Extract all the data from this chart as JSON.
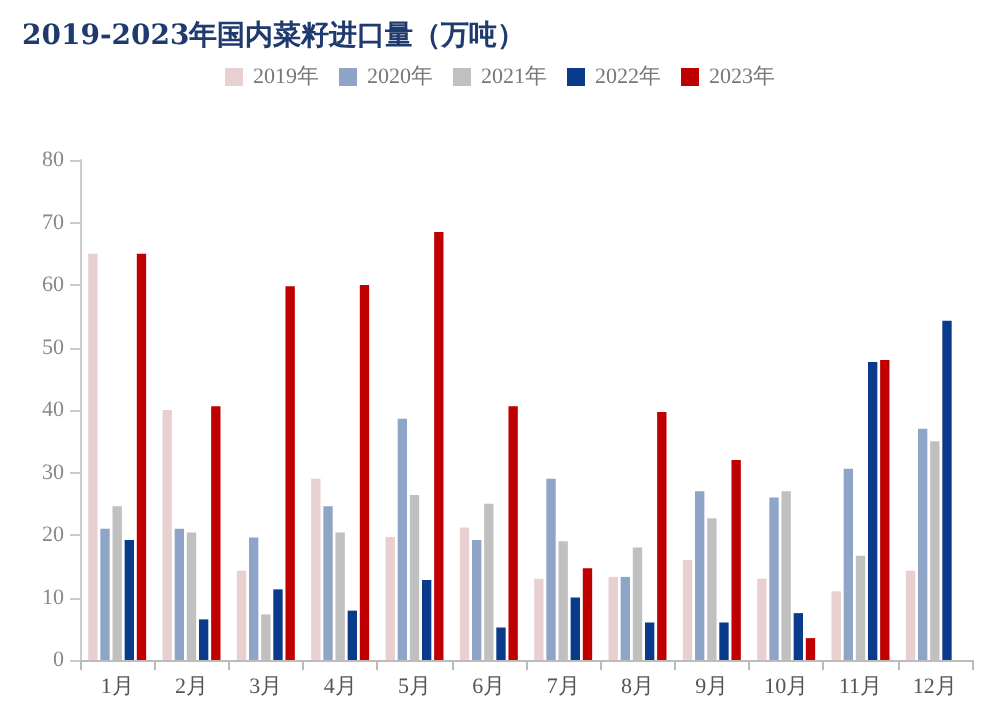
{
  "chart_data": {
    "type": "bar",
    "title": "2019-2023年国内菜籽进口量（万吨）",
    "categories": [
      "1月",
      "2月",
      "3月",
      "4月",
      "5月",
      "6月",
      "7月",
      "8月",
      "9月",
      "10月",
      "11月",
      "12月"
    ],
    "series": [
      {
        "name": "2019年",
        "color": "#e8d0d0",
        "values": [
          65,
          40,
          14.3,
          29,
          19.7,
          21.2,
          13,
          13.3,
          16,
          13,
          11,
          14.3
        ]
      },
      {
        "name": "2020年",
        "color": "#8ea5c8",
        "values": [
          21,
          21,
          19.6,
          24.6,
          38.6,
          19.2,
          29,
          13.3,
          27,
          26,
          30.6,
          37
        ]
      },
      {
        "name": "2021年",
        "color": "#c0c0c0",
        "values": [
          24.6,
          20.4,
          7.3,
          20.4,
          26.4,
          25,
          19,
          18,
          22.7,
          27,
          16.7,
          35
        ]
      },
      {
        "name": "2022年",
        "color": "#0a3a8a",
        "values": [
          19.2,
          6.5,
          11.3,
          7.9,
          12.8,
          5.2,
          10,
          6,
          6,
          7.5,
          47.7,
          54.3
        ]
      },
      {
        "name": "2023年",
        "color": "#c00000",
        "values": [
          65,
          40.6,
          59.8,
          60,
          68.5,
          40.6,
          14.7,
          39.7,
          32,
          3.5,
          48,
          null
        ]
      }
    ],
    "ylim": [
      0,
      80
    ],
    "yticks": [
      0,
      10,
      20,
      30,
      40,
      50,
      60,
      70,
      80
    ],
    "grid": false,
    "legend": "top"
  }
}
